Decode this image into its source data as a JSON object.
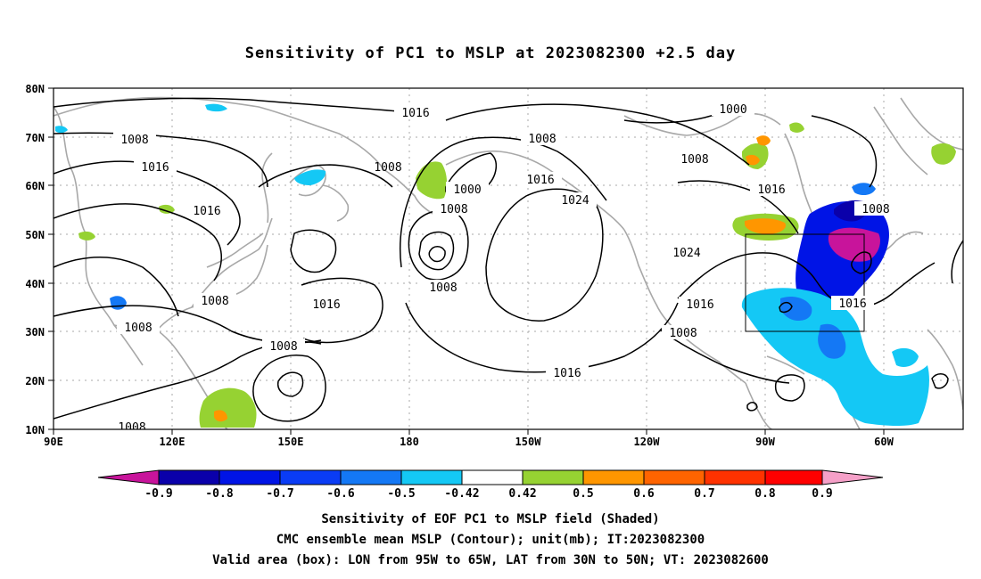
{
  "title": "Sensitivity of PC1 to MSLP at 2023082300 +2.5 day",
  "lat_labels": [
    "80N",
    "70N",
    "60N",
    "50N",
    "40N",
    "30N",
    "20N",
    "10N"
  ],
  "lon_labels": [
    "90E",
    "120E",
    "150E",
    "180",
    "150W",
    "120W",
    "90W",
    "60W"
  ],
  "contour_labels": [
    "1016",
    "1008",
    "1016",
    "1016",
    "1000",
    "1008",
    "1008",
    "1008",
    "1008",
    "1016",
    "1024",
    "1000",
    "1008",
    "1016",
    "1008",
    "1024",
    "1016",
    "1008",
    "1016",
    "1016",
    "1008",
    "1008",
    "1008",
    "1016",
    "1008"
  ],
  "colorbar": {
    "labels": [
      "-0.9",
      "-0.8",
      "-0.7",
      "-0.6",
      "-0.5",
      "-0.42",
      "0.42",
      "0.5",
      "0.6",
      "0.7",
      "0.8",
      "0.9"
    ],
    "colors": [
      "#c8149b",
      "#0a00aa",
      "#0014e6",
      "#0a3cf5",
      "#1478f5",
      "#14c8f5",
      "#ffffff",
      "#96d232",
      "#ff9600",
      "#ff6400",
      "#ff3200",
      "#ff0000",
      "#f5a0c8"
    ]
  },
  "captions": [
    "Sensitivity of EOF PC1 to MSLP field (Shaded)",
    "CMC ensemble mean MSLP (Contour); unit(mb); IT:2023082300",
    "Valid area (box): LON from 95W to 65W, LAT from 30N to 50N; VT: 2023082600"
  ]
}
